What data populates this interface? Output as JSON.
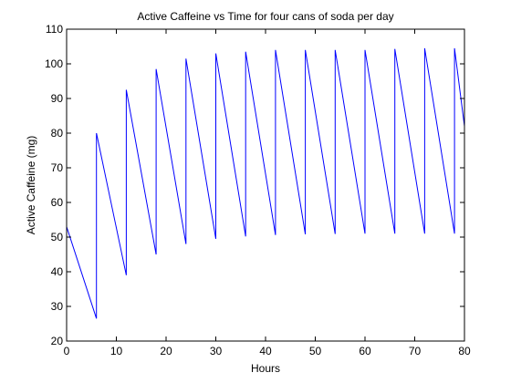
{
  "chart_data": {
    "type": "line",
    "title": "Active Caffeine vs Time for four cans of soda per day",
    "xlabel": "Hours",
    "ylabel": "Active Caffeine (mg)",
    "xlim": [
      0,
      80
    ],
    "ylim": [
      20,
      110
    ],
    "x_ticks": [
      0,
      10,
      20,
      30,
      40,
      50,
      60,
      70,
      80
    ],
    "y_ticks": [
      20,
      30,
      40,
      50,
      60,
      70,
      80,
      90,
      100,
      110
    ],
    "grid": false,
    "legend": "none",
    "line_color": "#0000ff",
    "series": [
      {
        "x": [
          0,
          6,
          6,
          12,
          12,
          18,
          18,
          24,
          24,
          30,
          30,
          36,
          36,
          42,
          42,
          48,
          48,
          54,
          54,
          60,
          60,
          66,
          66,
          72,
          72,
          78,
          78,
          80
        ],
        "values": [
          53,
          26.5,
          80,
          39,
          92.5,
          45,
          98.5,
          48,
          101.5,
          49.5,
          103,
          50.2,
          103.5,
          50.6,
          104,
          50.8,
          104,
          50.9,
          104,
          51,
          104,
          51,
          104.3,
          51,
          104.5,
          51,
          104.5,
          82
        ]
      }
    ]
  }
}
